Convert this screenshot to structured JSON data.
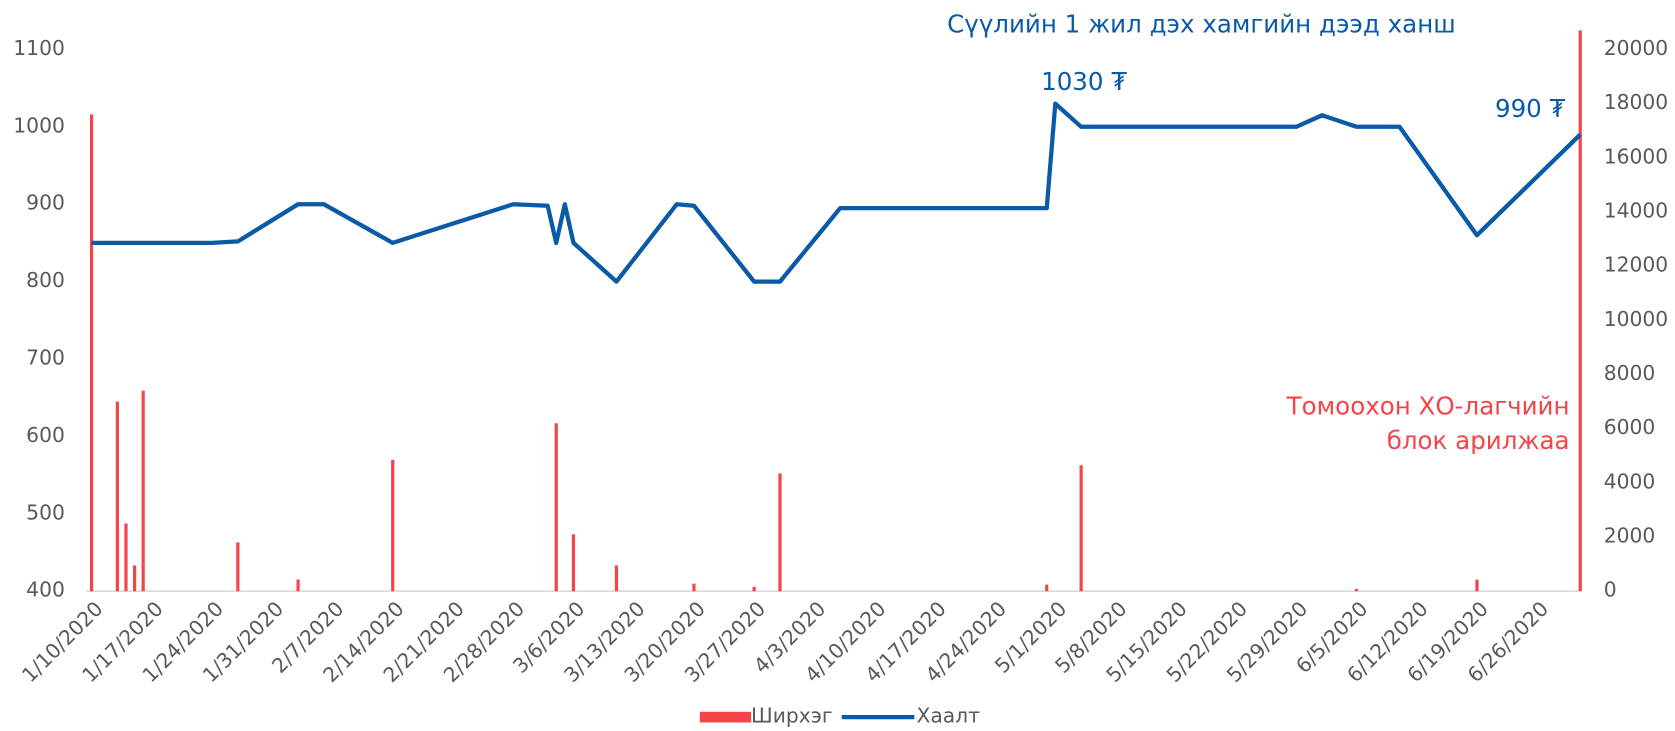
{
  "chart_data": {
    "type": "bar-line",
    "title": "Сүүлийн 1 жил дэх хамгийн дээд ханш",
    "annotations": [
      {
        "text": "1030 ₮",
        "color": "#0b5aa8"
      },
      {
        "text": "990 ₮",
        "color": "#0b5aa8"
      },
      {
        "text": [
          "Томоохон ХО-лагчийн",
          "блок арилжаа"
        ],
        "color": "#f4444a"
      }
    ],
    "xlim": [
      "1/10/2020",
      "7/1/2020"
    ],
    "xticks": [
      "1/10/2020",
      "1/17/2020",
      "1/24/2020",
      "1/31/2020",
      "2/7/2020",
      "2/14/2020",
      "2/21/2020",
      "2/28/2020",
      "3/6/2020",
      "3/13/2020",
      "3/20/2020",
      "3/27/2020",
      "4/3/2020",
      "4/10/2020",
      "4/17/2020",
      "4/24/2020",
      "5/1/2020",
      "5/8/2020",
      "5/15/2020",
      "5/22/2020",
      "5/29/2020",
      "6/5/2020",
      "6/12/2020",
      "6/19/2020",
      "6/26/2020"
    ],
    "ylim": [
      400,
      1128
    ],
    "yticks": [
      400,
      500,
      600,
      700,
      800,
      900,
      1000,
      1100
    ],
    "y2lim": [
      0,
      20800
    ],
    "y2ticks": [
      0,
      2000,
      4000,
      6000,
      8000,
      10000,
      12000,
      14000,
      16000,
      18000,
      20000
    ],
    "legend": "bottom",
    "series": [
      {
        "name": "Ширхэг",
        "kind": "bar",
        "axis": "y2",
        "color": "#f4444a",
        "x": [
          "1/10/2020",
          "1/13/2020",
          "1/14/2020",
          "1/15/2020",
          "1/16/2020",
          "1/27/2020",
          "2/3/2020",
          "2/14/2020",
          "3/4/2020",
          "3/6/2020",
          "3/11/2020",
          "3/20/2020",
          "3/27/2020",
          "3/30/2020",
          "4/30/2020",
          "5/4/2020",
          "6/5/2020",
          "6/19/2020",
          "7/1/2020"
        ],
        "values": [
          17600,
          7000,
          2500,
          950,
          7400,
          1800,
          430,
          4850,
          6200,
          2100,
          950,
          280,
          160,
          4350,
          240,
          4650,
          80,
          430,
          20700
        ]
      },
      {
        "name": "Хаалт",
        "kind": "line",
        "axis": "y",
        "color": "#0b5aa8",
        "x": [
          "1/10/2020",
          "1/24/2020",
          "1/27/2020",
          "2/3/2020",
          "2/6/2020",
          "2/14/2020",
          "2/28/2020",
          "3/3/2020",
          "3/4/2020",
          "3/5/2020",
          "3/6/2020",
          "3/11/2020",
          "3/18/2020",
          "3/20/2020",
          "3/27/2020",
          "3/30/2020",
          "4/6/2020",
          "4/30/2020",
          "5/1/2020",
          "5/4/2020",
          "5/29/2020",
          "6/1/2020",
          "6/5/2020",
          "6/10/2020",
          "6/19/2020",
          "7/1/2020"
        ],
        "values": [
          850,
          850,
          852,
          900,
          900,
          850,
          900,
          898,
          850,
          900,
          850,
          800,
          900,
          898,
          800,
          800,
          895,
          895,
          1030,
          1000,
          1000,
          1015,
          1000,
          1000,
          860,
          990
        ]
      }
    ]
  }
}
